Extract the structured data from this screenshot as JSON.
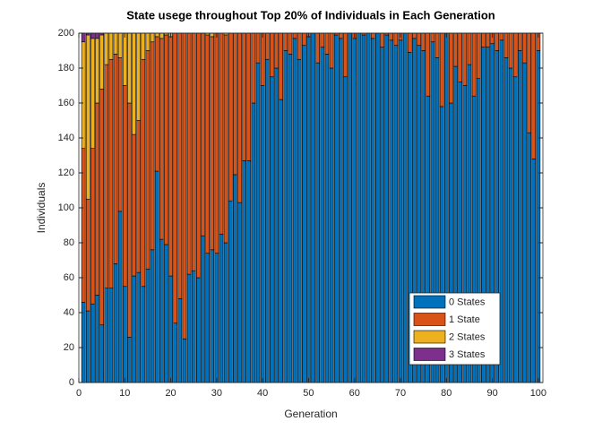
{
  "chart_data": {
    "type": "stacked_bar",
    "title": "State usege throughout Top 20% of Individuals in Each Generation",
    "xlabel": "Generation",
    "ylabel": "Individuals",
    "x": [
      1,
      2,
      3,
      4,
      5,
      6,
      7,
      8,
      9,
      10,
      11,
      12,
      13,
      14,
      15,
      16,
      17,
      18,
      19,
      20,
      21,
      22,
      23,
      24,
      25,
      26,
      27,
      28,
      29,
      30,
      31,
      32,
      33,
      34,
      35,
      36,
      37,
      38,
      39,
      40,
      41,
      42,
      43,
      44,
      45,
      46,
      47,
      48,
      49,
      50,
      51,
      52,
      53,
      54,
      55,
      56,
      57,
      58,
      59,
      60,
      61,
      62,
      63,
      64,
      65,
      66,
      67,
      68,
      69,
      70,
      71,
      72,
      73,
      74,
      75,
      76,
      77,
      78,
      79,
      80,
      81,
      82,
      83,
      84,
      85,
      86,
      87,
      88,
      89,
      90,
      91,
      92,
      93,
      94,
      95,
      96,
      97,
      98,
      99,
      100
    ],
    "series": [
      {
        "name": "0 States",
        "color": "#0072BD",
        "values": [
          46,
          41,
          45,
          50,
          33,
          54,
          54,
          68,
          98,
          55,
          26,
          61,
          63,
          55,
          65,
          76,
          121,
          82,
          79,
          61,
          34,
          48,
          25,
          62,
          64,
          60,
          84,
          74,
          76,
          74,
          85,
          80,
          104,
          119,
          103,
          127,
          127,
          160,
          183,
          170,
          185,
          175,
          180,
          162,
          190,
          188,
          197,
          185,
          193,
          198,
          200,
          183,
          192,
          188,
          180,
          199,
          197,
          175,
          200,
          197,
          200,
          199,
          200,
          197,
          200,
          192,
          199,
          196,
          193,
          196,
          200,
          189,
          197,
          193,
          190,
          164,
          195,
          186,
          158,
          200,
          160,
          181,
          172,
          170,
          182,
          164,
          174,
          192,
          192,
          194,
          190,
          196,
          186,
          180,
          175,
          190,
          183,
          143,
          128,
          190
        ]
      },
      {
        "name": "1 State",
        "color": "#D95319",
        "values": [
          88,
          64,
          89,
          110,
          135,
          128,
          131,
          120,
          88,
          115,
          134,
          81,
          87,
          130,
          125,
          119,
          77,
          115,
          120,
          137,
          166,
          152,
          175,
          138,
          136,
          140,
          116,
          125,
          122,
          126,
          115,
          119,
          96,
          81,
          97,
          73,
          73,
          40,
          17,
          30,
          15,
          25,
          20,
          38,
          10,
          12,
          3,
          15,
          7,
          2,
          0,
          17,
          8,
          12,
          20,
          1,
          3,
          25,
          0,
          3,
          0,
          1,
          0,
          3,
          0,
          8,
          1,
          4,
          7,
          4,
          0,
          11,
          3,
          7,
          10,
          36,
          5,
          14,
          42,
          0,
          40,
          19,
          28,
          30,
          18,
          36,
          26,
          8,
          8,
          6,
          10,
          4,
          14,
          20,
          25,
          10,
          17,
          57,
          72,
          10
        ]
      },
      {
        "name": "2 States",
        "color": "#EDB120",
        "values": [
          61,
          94,
          63,
          37,
          31,
          18,
          15,
          12,
          14,
          30,
          40,
          58,
          50,
          15,
          10,
          5,
          2,
          3,
          1,
          2,
          0,
          0,
          0,
          0,
          0,
          0,
          0,
          1,
          2,
          0,
          0,
          1,
          0,
          0,
          0,
          0,
          0,
          0,
          0,
          0,
          0,
          0,
          0,
          0,
          0,
          0,
          0,
          0,
          0,
          0,
          0,
          0,
          0,
          0,
          0,
          0,
          0,
          0,
          0,
          0,
          0,
          0,
          0,
          0,
          0,
          0,
          0,
          0,
          0,
          0,
          0,
          0,
          0,
          0,
          0,
          0,
          0,
          0,
          0,
          0,
          0,
          0,
          0,
          0,
          0,
          0,
          0,
          0,
          0,
          0,
          0,
          0,
          0,
          0,
          0,
          0,
          0,
          0,
          0,
          0
        ]
      },
      {
        "name": "3 States",
        "color": "#7E2F8E",
        "values": [
          5,
          1,
          3,
          3,
          1,
          0,
          0,
          0,
          0,
          0,
          0,
          0,
          0,
          0,
          0,
          0,
          0,
          0,
          0,
          0,
          0,
          0,
          0,
          0,
          0,
          0,
          0,
          0,
          0,
          0,
          0,
          0,
          0,
          0,
          0,
          0,
          0,
          0,
          0,
          0,
          0,
          0,
          0,
          0,
          0,
          0,
          0,
          0,
          0,
          0,
          0,
          0,
          0,
          0,
          0,
          0,
          0,
          0,
          0,
          0,
          0,
          0,
          0,
          0,
          0,
          0,
          0,
          0,
          0,
          0,
          0,
          0,
          0,
          0,
          0,
          0,
          0,
          0,
          0,
          0,
          0,
          0,
          0,
          0,
          0,
          0,
          0,
          0,
          0,
          0,
          0,
          0,
          0,
          0,
          0,
          0,
          0,
          0,
          0,
          0
        ]
      }
    ],
    "xlim": [
      0,
      101
    ],
    "xticks": [
      0,
      10,
      20,
      30,
      40,
      50,
      60,
      70,
      80,
      90,
      100
    ],
    "ylim": [
      0,
      200
    ],
    "yticks": [
      0,
      20,
      40,
      60,
      80,
      100,
      120,
      140,
      160,
      180,
      200
    ],
    "legend": "lower right"
  }
}
